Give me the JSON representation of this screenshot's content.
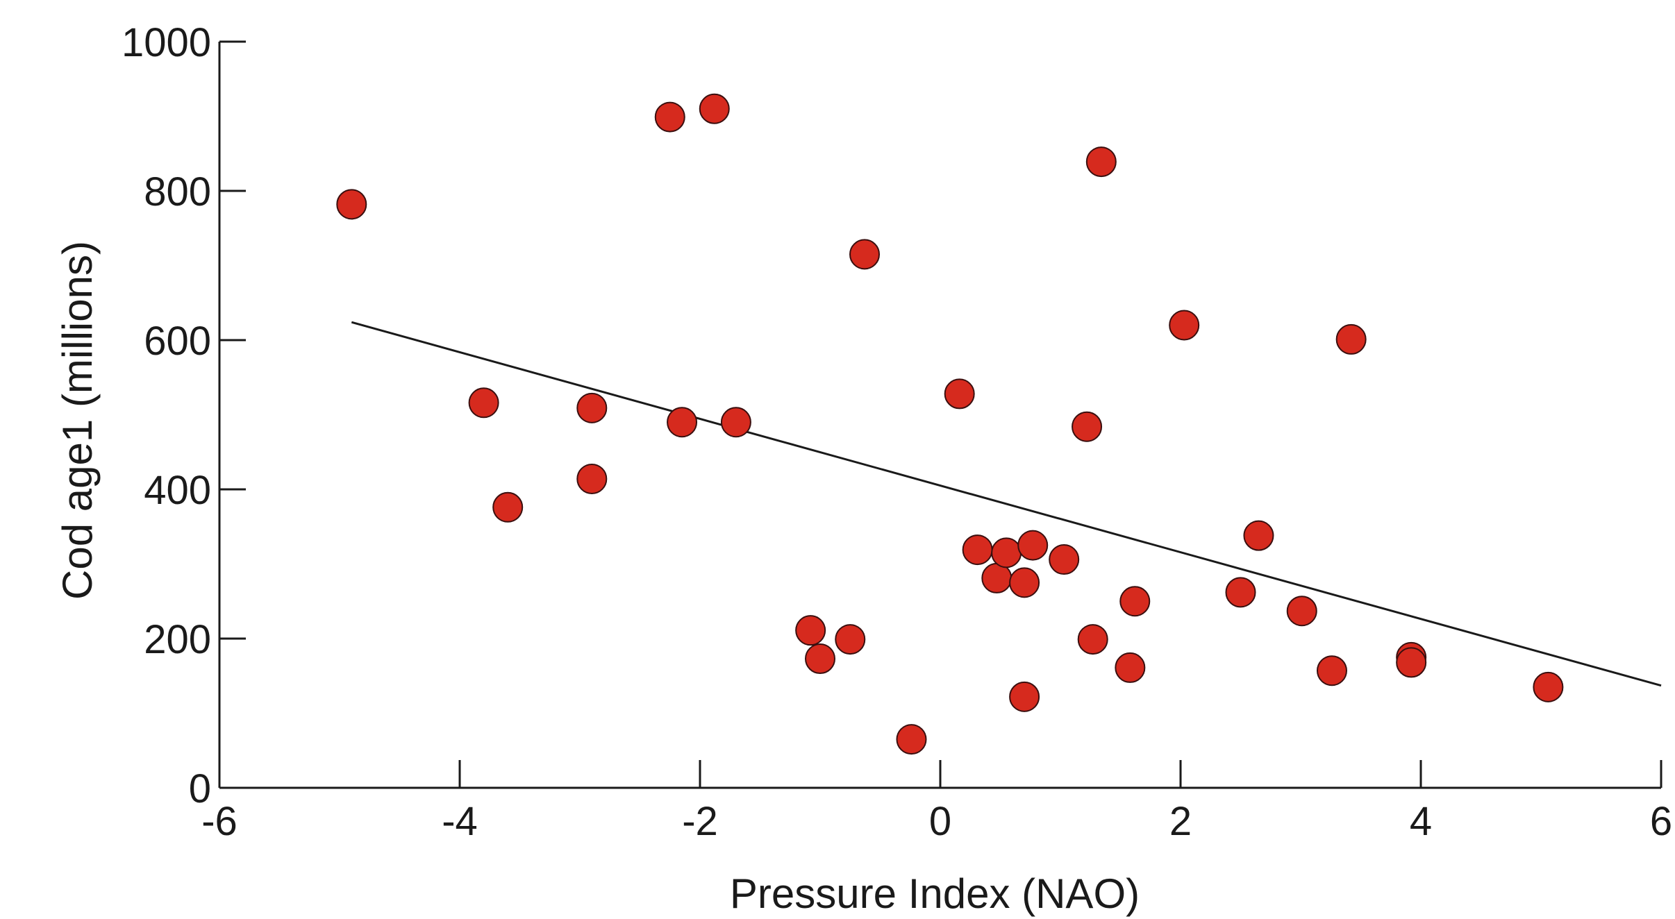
{
  "chart_data": {
    "type": "scatter",
    "xlabel": "Pressure Index (NAO)",
    "ylabel": "Cod age1 (millions)",
    "xlim": [
      -6,
      6
    ],
    "ylim": [
      0,
      1000
    ],
    "x_ticks": [
      -6,
      -4,
      -2,
      0,
      2,
      4,
      6
    ],
    "y_ticks": [
      0,
      200,
      400,
      600,
      800,
      1000
    ],
    "grid": false,
    "legend": "none",
    "colors": {
      "point": "#d62a1e",
      "line": "#1a1a1a",
      "axis": "#1a1a1a"
    },
    "points": [
      {
        "x": -4.9,
        "y": 782
      },
      {
        "x": -3.8,
        "y": 516
      },
      {
        "x": -3.6,
        "y": 376
      },
      {
        "x": -2.9,
        "y": 509
      },
      {
        "x": -2.9,
        "y": 414
      },
      {
        "x": -2.25,
        "y": 899
      },
      {
        "x": -2.15,
        "y": 490
      },
      {
        "x": -1.88,
        "y": 910
      },
      {
        "x": -1.7,
        "y": 490
      },
      {
        "x": -1.08,
        "y": 211
      },
      {
        "x": -1.0,
        "y": 173
      },
      {
        "x": -0.75,
        "y": 199
      },
      {
        "x": -0.63,
        "y": 715
      },
      {
        "x": -0.24,
        "y": 65
      },
      {
        "x": 0.16,
        "y": 528
      },
      {
        "x": 0.31,
        "y": 319
      },
      {
        "x": 0.47,
        "y": 281
      },
      {
        "x": 0.55,
        "y": 315
      },
      {
        "x": 0.7,
        "y": 275
      },
      {
        "x": 0.7,
        "y": 122
      },
      {
        "x": 0.77,
        "y": 325
      },
      {
        "x": 1.03,
        "y": 306
      },
      {
        "x": 1.22,
        "y": 484
      },
      {
        "x": 1.27,
        "y": 199
      },
      {
        "x": 1.34,
        "y": 839
      },
      {
        "x": 1.58,
        "y": 161
      },
      {
        "x": 1.62,
        "y": 250
      },
      {
        "x": 2.03,
        "y": 620
      },
      {
        "x": 2.5,
        "y": 262
      },
      {
        "x": 2.65,
        "y": 338
      },
      {
        "x": 3.01,
        "y": 237
      },
      {
        "x": 3.26,
        "y": 157
      },
      {
        "x": 3.42,
        "y": 601
      },
      {
        "x": 3.92,
        "y": 175
      },
      {
        "x": 3.92,
        "y": 168
      },
      {
        "x": 5.06,
        "y": 135
      }
    ],
    "trend": {
      "x": [
        -4.9,
        6.0
      ],
      "y": [
        624,
        137
      ]
    }
  }
}
